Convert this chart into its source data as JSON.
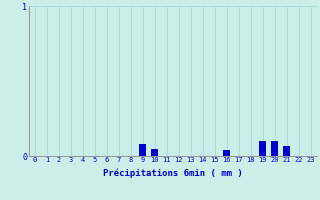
{
  "xlabel": "Précipitations 6min ( mm )",
  "hours": [
    0,
    1,
    2,
    3,
    4,
    5,
    6,
    7,
    8,
    9,
    10,
    11,
    12,
    13,
    14,
    15,
    16,
    17,
    18,
    19,
    20,
    21,
    22,
    23
  ],
  "values": [
    0,
    0,
    0,
    0,
    0,
    0,
    0,
    0,
    0,
    0.08,
    0.05,
    0,
    0,
    0,
    0,
    0,
    0.04,
    0,
    0,
    0.1,
    0.1,
    0.07,
    0,
    0
  ],
  "ylim": [
    0,
    1.0
  ],
  "yticks": [
    0,
    1
  ],
  "ytick_labels": [
    "0",
    "1"
  ],
  "bar_color": "#0000cc",
  "bg_color": "#cceee8",
  "grid_color": "#aadddd",
  "axis_color": "#999999",
  "text_color": "#0000cc",
  "bar_width": 0.6,
  "xlabel_fontsize": 6.5,
  "tick_fontsize": 5.0
}
